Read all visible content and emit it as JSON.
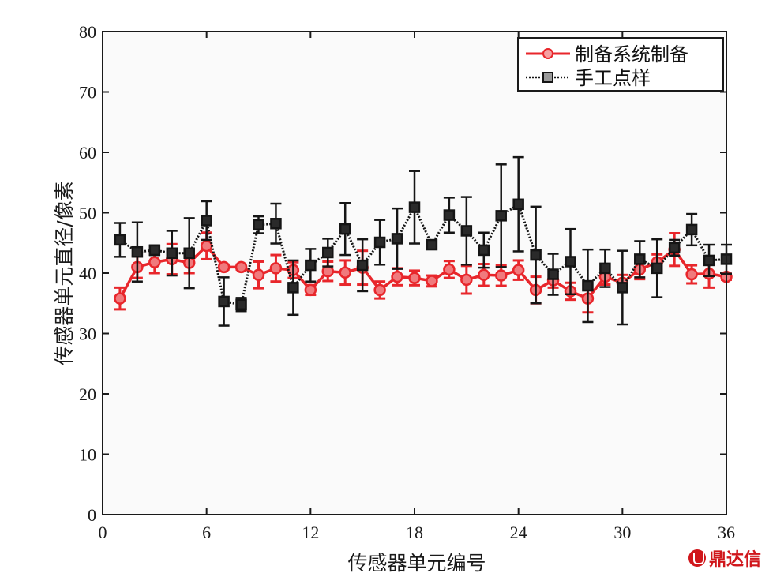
{
  "chart_data": {
    "type": "line",
    "xlabel": "传感器单元编号",
    "ylabel": "传感器单元直径/像素",
    "xlim": [
      0,
      36
    ],
    "ylim": [
      0,
      80
    ],
    "xticks": [
      0,
      6,
      12,
      18,
      24,
      30,
      36
    ],
    "yticks": [
      0,
      10,
      20,
      30,
      40,
      50,
      60,
      70,
      80
    ],
    "grid": false,
    "legend_position": "top-right",
    "series": [
      {
        "name": "制备系统制备",
        "color": "#e8262b",
        "marker": "circle",
        "line_style": "solid",
        "x": [
          1,
          2,
          3,
          4,
          5,
          6,
          7,
          8,
          9,
          10,
          11,
          12,
          13,
          14,
          15,
          16,
          17,
          18,
          19,
          20,
          21,
          22,
          23,
          24,
          25,
          26,
          27,
          28,
          29,
          30,
          31,
          32,
          33,
          34,
          35,
          36
        ],
        "y": [
          35.8,
          41.0,
          41.8,
          42.3,
          41.7,
          44.5,
          41.0,
          41.0,
          39.7,
          40.8,
          40.5,
          37.2,
          40.3,
          40.1,
          40.9,
          37.2,
          39.4,
          39.2,
          38.7,
          40.6,
          38.9,
          39.7,
          39.6,
          40.5,
          37.2,
          38.8,
          37.0,
          35.8,
          39.4,
          38.4,
          40.6,
          41.8,
          43.9,
          39.8,
          39.9,
          39.4
        ],
        "err": [
          1.8,
          1.8,
          1.8,
          2.5,
          1.7,
          2.2,
          0.4,
          0.4,
          2.2,
          2.2,
          1.3,
          0.8,
          1.6,
          2.0,
          2.8,
          1.4,
          1.4,
          1.2,
          0.9,
          1.4,
          2.3,
          1.8,
          1.7,
          1.6,
          2.2,
          1.2,
          1.4,
          2.3,
          1.3,
          1.3,
          1.6,
          1.3,
          2.7,
          1.5,
          2.3,
          0.5
        ]
      },
      {
        "name": "手工点样",
        "color": "#151515",
        "marker": "square",
        "line_style": "dotted",
        "x": [
          1,
          2,
          3,
          4,
          5,
          6,
          7,
          8,
          9,
          10,
          11,
          12,
          13,
          14,
          15,
          16,
          17,
          18,
          19,
          20,
          21,
          22,
          23,
          24,
          25,
          26,
          27,
          28,
          29,
          30,
          31,
          32,
          33,
          34,
          35,
          36
        ],
        "y": [
          45.5,
          43.5,
          43.8,
          43.3,
          43.3,
          48.7,
          35.3,
          34.8,
          48.0,
          48.2,
          37.6,
          41.3,
          43.4,
          47.3,
          41.3,
          45.1,
          45.7,
          50.9,
          44.7,
          49.6,
          47.0,
          43.8,
          49.5,
          51.4,
          43.0,
          39.8,
          41.9,
          37.9,
          40.8,
          37.6,
          42.3,
          40.8,
          44.2,
          47.2,
          42.1,
          42.3
        ]
      }
    ],
    "err_black": [
      2.8,
      4.9,
      0.8,
      3.7,
      5.8,
      3.2,
      4.0,
      1.1,
      1.4,
      3.3,
      4.5,
      2.7,
      2.3,
      4.3,
      4.3,
      3.7,
      5.0,
      6.0,
      0.6,
      2.9,
      5.6,
      2.9,
      8.5,
      7.8,
      8.0,
      3.4,
      5.4,
      6.0,
      3.1,
      6.1,
      3.0,
      4.8,
      1.3,
      2.6,
      2.6,
      2.4
    ]
  },
  "watermark": {
    "text": "鼎达信"
  }
}
